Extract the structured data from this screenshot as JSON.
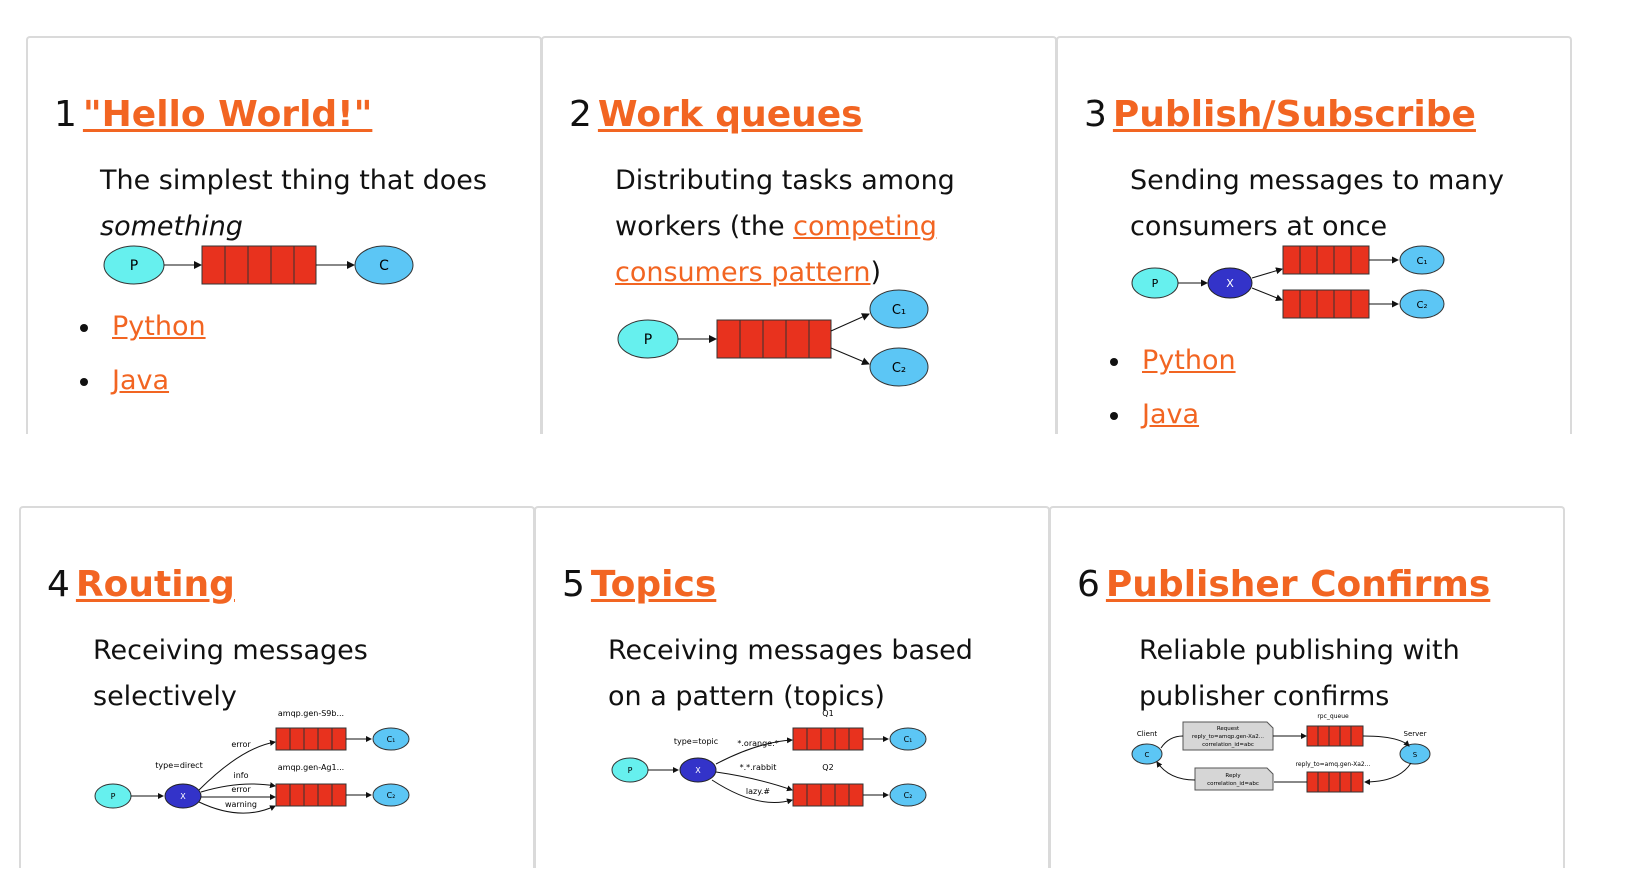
{
  "colors": {
    "accent": "#f26522",
    "producer": "#66f0ee",
    "consumer": "#5cc6f5",
    "exchange": "#3333c9",
    "queue": "#e8321e"
  },
  "cards": [
    {
      "number": "1",
      "title": "\"Hello World!\"",
      "desc_part1": "The simplest thing that does",
      "desc_em": "something",
      "links": [
        "Python",
        "Java"
      ],
      "diagram": {
        "producer": "P",
        "consumer": "C"
      }
    },
    {
      "number": "2",
      "title": "Work queues",
      "desc_part1": "Distributing tasks among workers (the ",
      "desc_link": "competing consumers pattern",
      "desc_part2": ")",
      "diagram": {
        "producer": "P",
        "consumers": [
          "C₁",
          "C₂"
        ]
      }
    },
    {
      "number": "3",
      "title": "Publish/Subscribe",
      "desc_part1": "Sending messages to many consumers at once",
      "links": [
        "Python",
        "Java"
      ],
      "diagram": {
        "producer": "P",
        "exchange": "X",
        "consumers": [
          "C₁",
          "C₂"
        ]
      }
    },
    {
      "number": "4",
      "title": "Routing",
      "desc_part1": "Receiving messages selectively",
      "diagram": {
        "producer": "P",
        "exchange": "X",
        "exchange_type": "type=direct",
        "queues": [
          "amqp.gen-S9b...",
          "amqp.gen-Ag1..."
        ],
        "bindings": [
          "error",
          "info",
          "error",
          "warning"
        ],
        "consumers": [
          "C₁",
          "C₂"
        ]
      }
    },
    {
      "number": "5",
      "title": "Topics",
      "desc_part1": "Receiving messages based on a pattern (topics)",
      "diagram": {
        "producer": "P",
        "exchange": "X",
        "exchange_type": "type=topic",
        "queues": [
          "Q1",
          "Q2"
        ],
        "bindings": [
          "*.orange.*",
          "*.*.rabbit",
          "lazy.#"
        ],
        "consumers": [
          "C₁",
          "C₂"
        ]
      }
    },
    {
      "number": "6",
      "title": "Publisher Confirms",
      "desc_part1": "Reliable publishing with publisher confirms",
      "diagram": {
        "client_label": "Client",
        "server_label": "Server",
        "client": "C",
        "server": "S",
        "request_label": "rpc_queue",
        "reply_label": "reply_to=amq.gen-Xa2...",
        "request_msg": [
          "Request",
          "reply_to=amqp.gen-Xa2...",
          "correlation_id=abc"
        ],
        "reply_msg": [
          "Reply",
          "correlation_id=abc"
        ]
      }
    }
  ]
}
